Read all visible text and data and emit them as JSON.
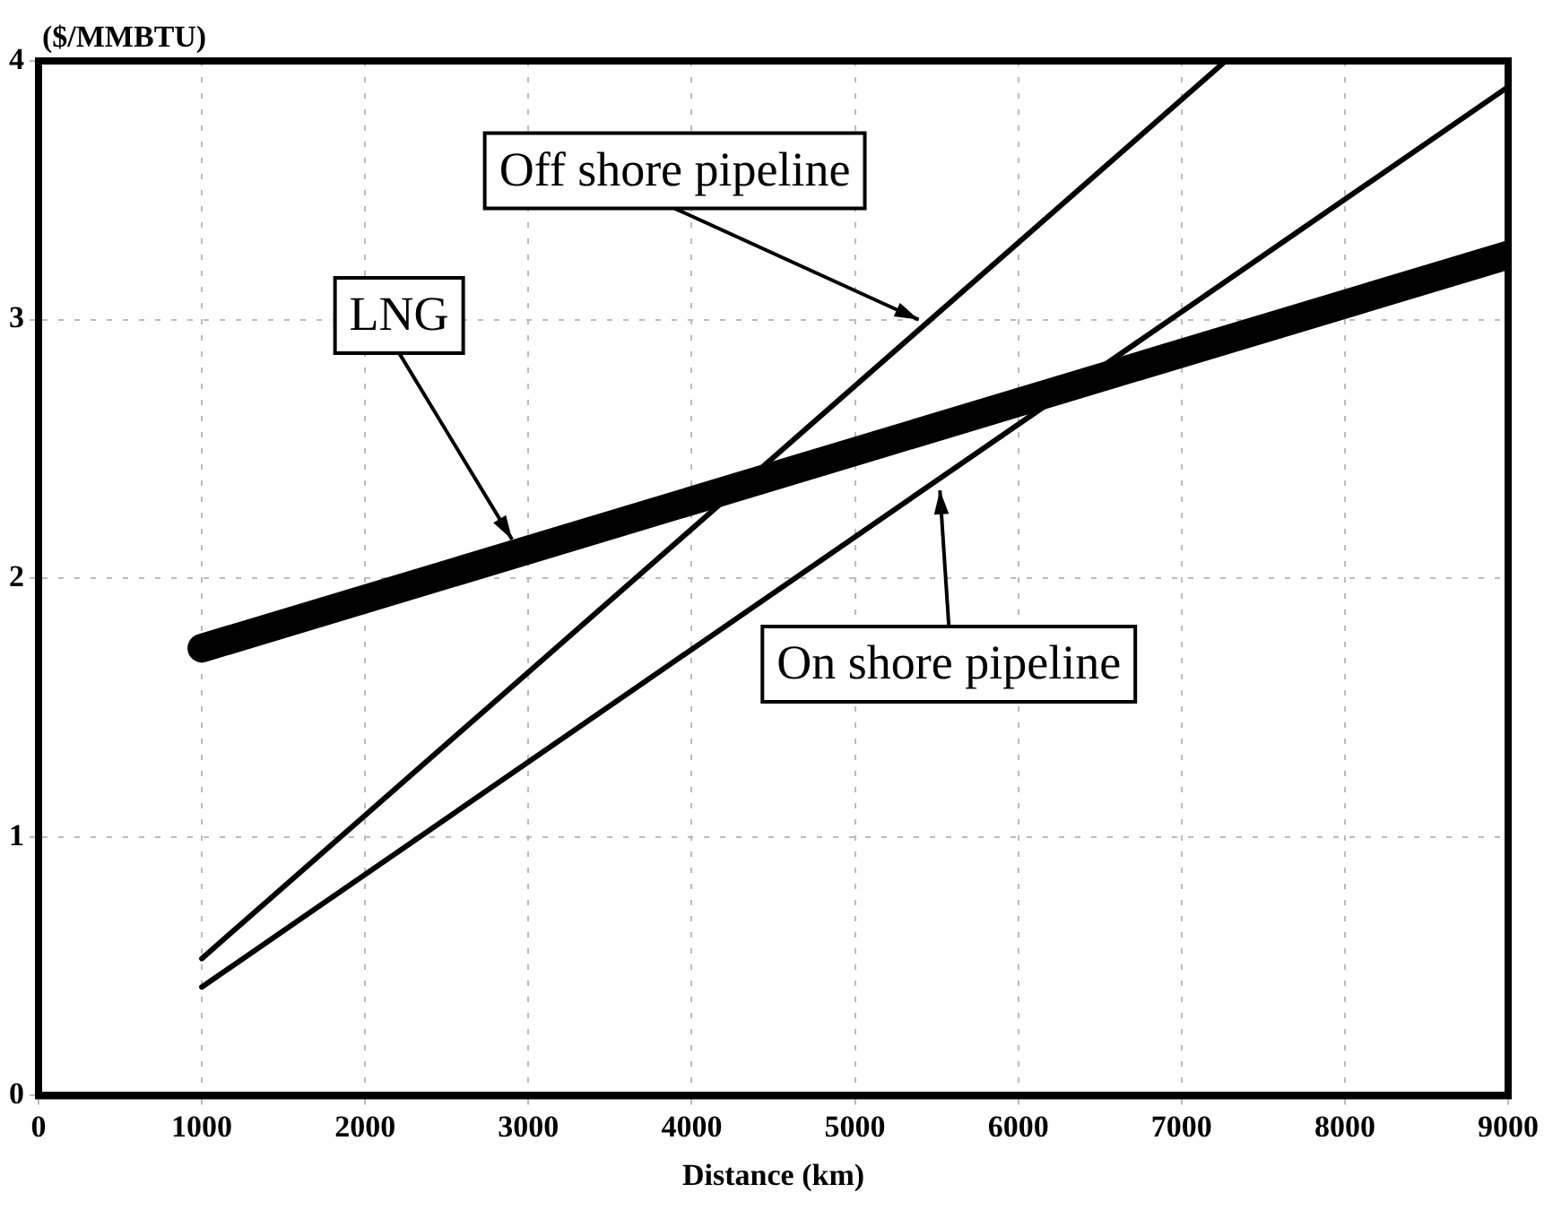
{
  "chart_data": {
    "type": "line",
    "xlabel": "Distance (km)",
    "ylabel": "($/MMBTU)",
    "series": [
      {
        "color": "#000000",
        "x": [
          1000,
          9000
        ],
        "values": [
          1.73,
          3.25
        ]
      },
      {
        "color": "#000000",
        "x": [
          1000,
          7270
        ],
        "values": [
          0.53,
          4
        ]
      },
      {
        "color": "#000000",
        "x": [
          1000,
          9000
        ],
        "values": [
          0.42,
          3.9
        ]
      }
    ],
    "xlim": [
      0,
      9000
    ],
    "xticks": [
      0,
      1000,
      2000,
      3000,
      4000,
      5000,
      6000,
      7000,
      8000,
      9000
    ],
    "ylim": [
      0,
      4
    ],
    "yticks": [
      0,
      1,
      2,
      3,
      4
    ],
    "grid": true,
    "legend": false,
    "marker": "none",
    "line_style": "solid",
    "annotations": [
      {
        "text": "LNG",
        "x": 2900,
        "y": 2.15
      },
      {
        "text": "Off shore pipeline",
        "x": 5390,
        "y": 3.0
      },
      {
        "text": "On shore pipeline",
        "x": 5520,
        "y": 2.34
      }
    ]
  }
}
